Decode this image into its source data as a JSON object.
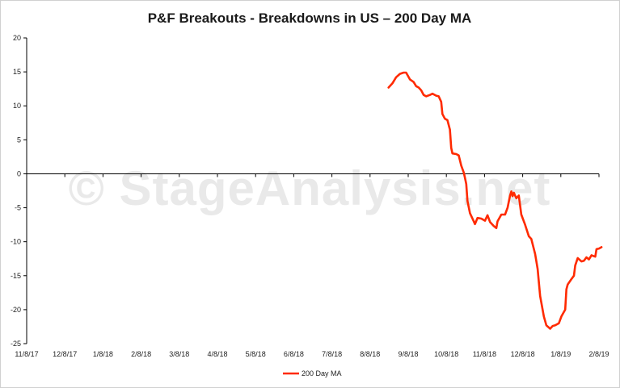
{
  "watermark": "© StageAnalysis.net",
  "colors": {
    "series": "#ff2a00",
    "axis": "#000000",
    "frame": "#d0d0d0",
    "background": "#ffffff"
  },
  "chart_data": {
    "type": "line",
    "title": "P&F Breakouts - Breakdowns in US – 200 Day MA",
    "xlabel": "",
    "ylabel": "",
    "ylim": [
      -25,
      20
    ],
    "yticks": [
      20,
      15,
      10,
      5,
      0,
      -5,
      -10,
      -15,
      -20,
      -25
    ],
    "xticks": [
      "11/8/17",
      "12/8/17",
      "1/8/18",
      "2/8/18",
      "3/8/18",
      "4/8/18",
      "5/8/18",
      "6/8/18",
      "7/8/18",
      "8/8/18",
      "9/8/18",
      "10/8/18",
      "11/8/18",
      "12/8/18",
      "1/8/19",
      "2/8/19"
    ],
    "xlim": [
      "2017-11-08",
      "2019-02-08"
    ],
    "grid": false,
    "legend_position": "bottom",
    "series": [
      {
        "name": "200 Day MA",
        "points": [
          [
            "2018-08-24",
            12.7
          ],
          [
            "2018-08-27",
            13.3
          ],
          [
            "2018-08-30",
            14.2
          ],
          [
            "2018-09-02",
            14.7
          ],
          [
            "2018-09-05",
            14.9
          ],
          [
            "2018-09-07",
            14.9
          ],
          [
            "2018-09-10",
            13.9
          ],
          [
            "2018-09-13",
            13.5
          ],
          [
            "2018-09-15",
            12.9
          ],
          [
            "2018-09-17",
            12.7
          ],
          [
            "2018-09-19",
            12.3
          ],
          [
            "2018-09-21",
            11.6
          ],
          [
            "2018-09-23",
            11.4
          ],
          [
            "2018-09-26",
            11.6
          ],
          [
            "2018-09-28",
            11.8
          ],
          [
            "2018-10-01",
            11.5
          ],
          [
            "2018-10-03",
            11.4
          ],
          [
            "2018-10-05",
            10.6
          ],
          [
            "2018-10-06",
            8.8
          ],
          [
            "2018-10-08",
            8.1
          ],
          [
            "2018-10-10",
            7.9
          ],
          [
            "2018-10-12",
            6.5
          ],
          [
            "2018-10-13",
            3.8
          ],
          [
            "2018-10-14",
            3.0
          ],
          [
            "2018-10-17",
            2.9
          ],
          [
            "2018-10-19",
            2.7
          ],
          [
            "2018-10-21",
            1.2
          ],
          [
            "2018-10-23",
            0.2
          ],
          [
            "2018-10-24",
            -0.6
          ],
          [
            "2018-10-25",
            -1.5
          ],
          [
            "2018-10-26",
            -4.0
          ],
          [
            "2018-10-28",
            -5.8
          ],
          [
            "2018-10-31",
            -7.0
          ],
          [
            "2018-11-01",
            -7.4
          ],
          [
            "2018-11-03",
            -6.5
          ],
          [
            "2018-11-06",
            -6.6
          ],
          [
            "2018-11-09",
            -6.9
          ],
          [
            "2018-11-11",
            -6.1
          ],
          [
            "2018-11-13",
            -7.1
          ],
          [
            "2018-11-16",
            -7.7
          ],
          [
            "2018-11-18",
            -8.0
          ],
          [
            "2018-11-19",
            -7.0
          ],
          [
            "2018-11-22",
            -6.0
          ],
          [
            "2018-11-25",
            -6.0
          ],
          [
            "2018-11-27",
            -5.0
          ],
          [
            "2018-11-29",
            -3.2
          ],
          [
            "2018-11-30",
            -2.6
          ],
          [
            "2018-12-01",
            -3.3
          ],
          [
            "2018-12-02",
            -2.8
          ],
          [
            "2018-12-04",
            -3.6
          ],
          [
            "2018-12-06",
            -3.2
          ],
          [
            "2018-12-08",
            -6.0
          ],
          [
            "2018-12-11",
            -7.5
          ],
          [
            "2018-12-14",
            -9.2
          ],
          [
            "2018-12-16",
            -9.6
          ],
          [
            "2018-12-19",
            -11.8
          ],
          [
            "2018-12-21",
            -14.0
          ],
          [
            "2018-12-23",
            -18.0
          ],
          [
            "2018-12-26",
            -21.0
          ],
          [
            "2018-12-28",
            -22.3
          ],
          [
            "2018-12-31",
            -22.8
          ],
          [
            "2019-01-02",
            -22.4
          ],
          [
            "2019-01-04",
            -22.3
          ],
          [
            "2019-01-07",
            -22.0
          ],
          [
            "2019-01-09",
            -21.0
          ],
          [
            "2019-01-12",
            -20.0
          ],
          [
            "2019-01-13",
            -17.0
          ],
          [
            "2019-01-14",
            -16.3
          ],
          [
            "2019-01-17",
            -15.5
          ],
          [
            "2019-01-19",
            -15.0
          ],
          [
            "2019-01-20",
            -13.5
          ],
          [
            "2019-01-22",
            -12.4
          ],
          [
            "2019-01-25",
            -12.9
          ],
          [
            "2019-01-27",
            -12.8
          ],
          [
            "2019-01-29",
            -12.3
          ],
          [
            "2019-01-31",
            -12.6
          ],
          [
            "2019-02-02",
            -12.0
          ],
          [
            "2019-02-05",
            -12.2
          ],
          [
            "2019-02-06",
            -11.1
          ],
          [
            "2019-02-08",
            -11.0
          ],
          [
            "2019-02-10",
            -10.8
          ]
        ]
      }
    ]
  }
}
